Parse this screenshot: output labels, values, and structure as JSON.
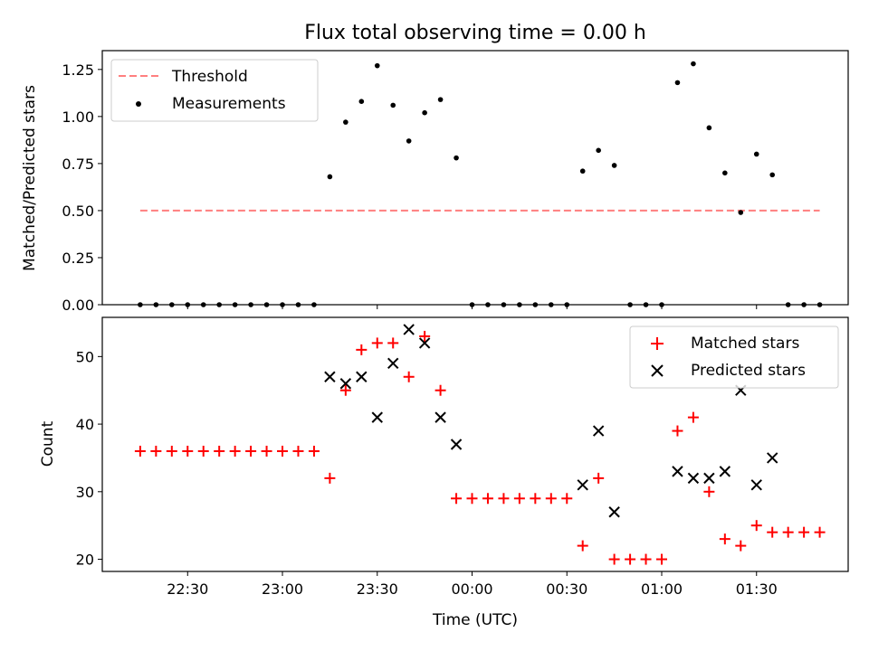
{
  "title": "Flux total observing time = 0.00 h",
  "colors": {
    "threshold": "#ff7f7f",
    "measurements": "#000000",
    "matched": "#ff0000",
    "predicted": "#000000"
  },
  "chart_data": [
    {
      "type": "scatter",
      "ylabel": "Matched/Predicted stars",
      "ylim": [
        0,
        1.35
      ],
      "yticks": [
        "0.00",
        "0.25",
        "0.50",
        "0.75",
        "1.00",
        "1.25"
      ],
      "ytick_values": [
        0,
        0.25,
        0.5,
        0.75,
        1.0,
        1.25
      ],
      "legend_position": "top-left",
      "threshold": {
        "name": "Threshold",
        "value": 0.5,
        "x_start": "22:15",
        "x_end": "01:50"
      },
      "series": [
        {
          "name": "Measurements",
          "points": [
            [
              "22:15",
              0.0
            ],
            [
              "22:20",
              0.0
            ],
            [
              "22:25",
              0.0
            ],
            [
              "22:30",
              0.0
            ],
            [
              "22:35",
              0.0
            ],
            [
              "22:40",
              0.0
            ],
            [
              "22:45",
              0.0
            ],
            [
              "22:50",
              0.0
            ],
            [
              "22:55",
              0.0
            ],
            [
              "23:00",
              0.0
            ],
            [
              "23:05",
              0.0
            ],
            [
              "23:10",
              0.0
            ],
            [
              "23:15",
              0.68
            ],
            [
              "23:20",
              0.97
            ],
            [
              "23:25",
              1.08
            ],
            [
              "23:30",
              1.27
            ],
            [
              "23:35",
              1.06
            ],
            [
              "23:40",
              0.87
            ],
            [
              "23:45",
              1.02
            ],
            [
              "23:50",
              1.09
            ],
            [
              "23:55",
              0.78
            ],
            [
              "00:00",
              0.0
            ],
            [
              "00:05",
              0.0
            ],
            [
              "00:10",
              0.0
            ],
            [
              "00:15",
              0.0
            ],
            [
              "00:20",
              0.0
            ],
            [
              "00:25",
              0.0
            ],
            [
              "00:30",
              0.0
            ],
            [
              "00:35",
              0.71
            ],
            [
              "00:40",
              0.82
            ],
            [
              "00:45",
              0.74
            ],
            [
              "00:50",
              0.0
            ],
            [
              "00:55",
              0.0
            ],
            [
              "01:00",
              0.0
            ],
            [
              "01:05",
              1.18
            ],
            [
              "01:10",
              1.28
            ],
            [
              "01:15",
              0.94
            ],
            [
              "01:20",
              0.7
            ],
            [
              "01:25",
              0.49
            ],
            [
              "01:30",
              0.8
            ],
            [
              "01:35",
              0.69
            ],
            [
              "01:40",
              0.0
            ],
            [
              "01:45",
              0.0
            ],
            [
              "01:50",
              0.0
            ]
          ]
        }
      ]
    },
    {
      "type": "scatter",
      "xlabel": "Time (UTC)",
      "ylabel": "Count",
      "ylim": [
        18.2,
        55.8
      ],
      "yticks": [
        "20",
        "30",
        "40",
        "50"
      ],
      "ytick_values": [
        20,
        30,
        40,
        50
      ],
      "xticks": [
        "22:30",
        "23:00",
        "23:30",
        "00:00",
        "00:30",
        "01:00",
        "01:30"
      ],
      "xlim": [
        "22:03",
        "01:59"
      ],
      "legend_position": "top-right",
      "series": [
        {
          "name": "Matched stars",
          "points": [
            [
              "22:15",
              36
            ],
            [
              "22:20",
              36
            ],
            [
              "22:25",
              36
            ],
            [
              "22:30",
              36
            ],
            [
              "22:35",
              36
            ],
            [
              "22:40",
              36
            ],
            [
              "22:45",
              36
            ],
            [
              "22:50",
              36
            ],
            [
              "22:55",
              36
            ],
            [
              "23:00",
              36
            ],
            [
              "23:05",
              36
            ],
            [
              "23:10",
              36
            ],
            [
              "23:15",
              32
            ],
            [
              "23:20",
              45
            ],
            [
              "23:25",
              51
            ],
            [
              "23:30",
              52
            ],
            [
              "23:35",
              52
            ],
            [
              "23:40",
              47
            ],
            [
              "23:45",
              53
            ],
            [
              "23:50",
              45
            ],
            [
              "23:55",
              29
            ],
            [
              "00:00",
              29
            ],
            [
              "00:05",
              29
            ],
            [
              "00:10",
              29
            ],
            [
              "00:15",
              29
            ],
            [
              "00:20",
              29
            ],
            [
              "00:25",
              29
            ],
            [
              "00:30",
              29
            ],
            [
              "00:35",
              22
            ],
            [
              "00:40",
              32
            ],
            [
              "00:45",
              20
            ],
            [
              "00:50",
              20
            ],
            [
              "00:55",
              20
            ],
            [
              "01:00",
              20
            ],
            [
              "01:05",
              39
            ],
            [
              "01:10",
              41
            ],
            [
              "01:15",
              30
            ],
            [
              "01:20",
              23
            ],
            [
              "01:25",
              22
            ],
            [
              "01:30",
              25
            ],
            [
              "01:35",
              24
            ],
            [
              "01:40",
              24
            ],
            [
              "01:45",
              24
            ],
            [
              "01:50",
              24
            ]
          ]
        },
        {
          "name": "Predicted stars",
          "points": [
            [
              "23:15",
              47
            ],
            [
              "23:20",
              46
            ],
            [
              "23:25",
              47
            ],
            [
              "23:30",
              41
            ],
            [
              "23:35",
              49
            ],
            [
              "23:40",
              54
            ],
            [
              "23:45",
              52
            ],
            [
              "23:50",
              41
            ],
            [
              "23:55",
              37
            ],
            [
              "00:35",
              31
            ],
            [
              "00:40",
              39
            ],
            [
              "00:45",
              27
            ],
            [
              "01:05",
              33
            ],
            [
              "01:10",
              32
            ],
            [
              "01:15",
              32
            ],
            [
              "01:20",
              33
            ],
            [
              "01:25",
              45
            ],
            [
              "01:30",
              31
            ],
            [
              "01:35",
              35
            ]
          ]
        }
      ]
    }
  ]
}
